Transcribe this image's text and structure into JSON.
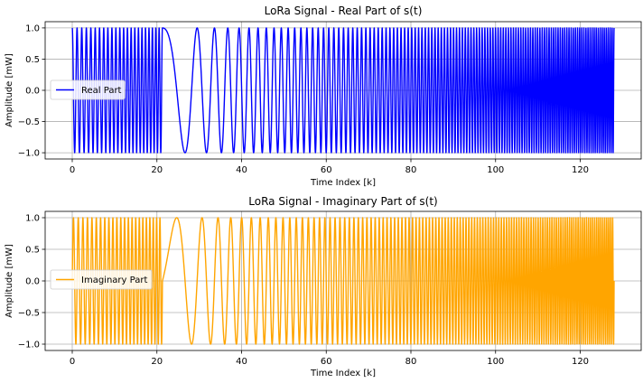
{
  "chart_data": [
    {
      "type": "line",
      "title": "LoRa Signal - Real Part of s(t)",
      "xlabel": "Time Index [k]",
      "ylabel": "Amplitude [mW]",
      "xlim": [
        -6.4,
        134.4
      ],
      "ylim": [
        -1.1,
        1.1
      ],
      "xticks": [
        0,
        20,
        40,
        60,
        80,
        100,
        120
      ],
      "yticks": [
        -1.0,
        -0.5,
        0.0,
        0.5,
        1.0
      ],
      "ytick_labels": [
        "−1.0",
        "−0.5",
        "0.0",
        "0.5",
        "1.0"
      ],
      "grid": true,
      "legend": "center-left",
      "series": [
        {
          "name": "Real Part",
          "color": "#0000ff",
          "function": "cos",
          "x_range": [
            0,
            128
          ],
          "amplitude": 1.0,
          "chirp_wrap_at_k": 21.3,
          "visible_cycles_before_wrap": 23,
          "visible_cycles_after_wrap": 118
        }
      ]
    },
    {
      "type": "line",
      "title": "LoRa Signal - Imaginary Part of s(t)",
      "xlabel": "Time Index [k]",
      "ylabel": "Amplitude [mW]",
      "xlim": [
        -6.4,
        134.4
      ],
      "ylim": [
        -1.1,
        1.1
      ],
      "xticks": [
        0,
        20,
        40,
        60,
        80,
        100,
        120
      ],
      "yticks": [
        -1.0,
        -0.5,
        0.0,
        0.5,
        1.0
      ],
      "ytick_labels": [
        "−1.0",
        "−0.5",
        "0.0",
        "0.5",
        "1.0"
      ],
      "grid": true,
      "legend": "center-left",
      "series": [
        {
          "name": "Imaginary Part",
          "color": "#ffa500",
          "function": "sin",
          "x_range": [
            0,
            128
          ],
          "amplitude": 1.0,
          "chirp_wrap_at_k": 21.3,
          "visible_cycles_before_wrap": 23,
          "visible_cycles_after_wrap": 118
        }
      ]
    }
  ]
}
